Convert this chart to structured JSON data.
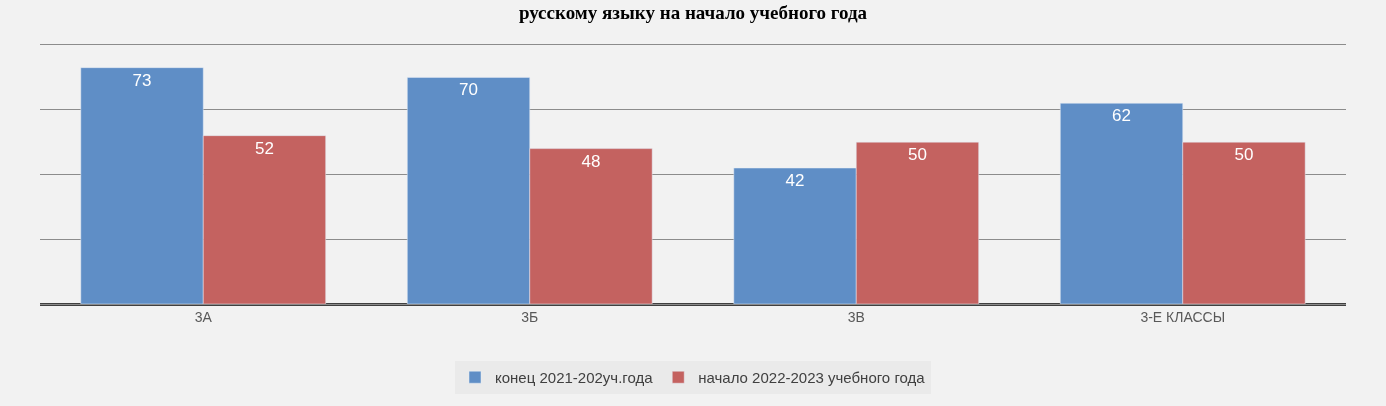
{
  "chart_data": {
    "type": "bar",
    "title": "русскому языку на начало учебного года",
    "categories": [
      "3А",
      "3Б",
      "3В",
      "3-Е КЛАССЫ"
    ],
    "series": [
      {
        "name": "конец 2021-202уч.года",
        "color": "#5f8ec6",
        "values": [
          73,
          70,
          42,
          62
        ]
      },
      {
        "name": "начало 2022-2023 учебного года",
        "color": "#c46260",
        "values": [
          52,
          48,
          50,
          50
        ]
      }
    ],
    "ylim": [
      0,
      80
    ],
    "yticks": [
      {
        "value": 0,
        "label": null
      },
      {
        "value": 20,
        "label": null
      },
      {
        "value": 40,
        "label": null
      },
      {
        "value": 60,
        "label": null
      },
      {
        "value": 80,
        "label": null
      }
    ],
    "grid": "y",
    "legend": "bottom",
    "data_labels": true,
    "tick_labels": "x"
  }
}
